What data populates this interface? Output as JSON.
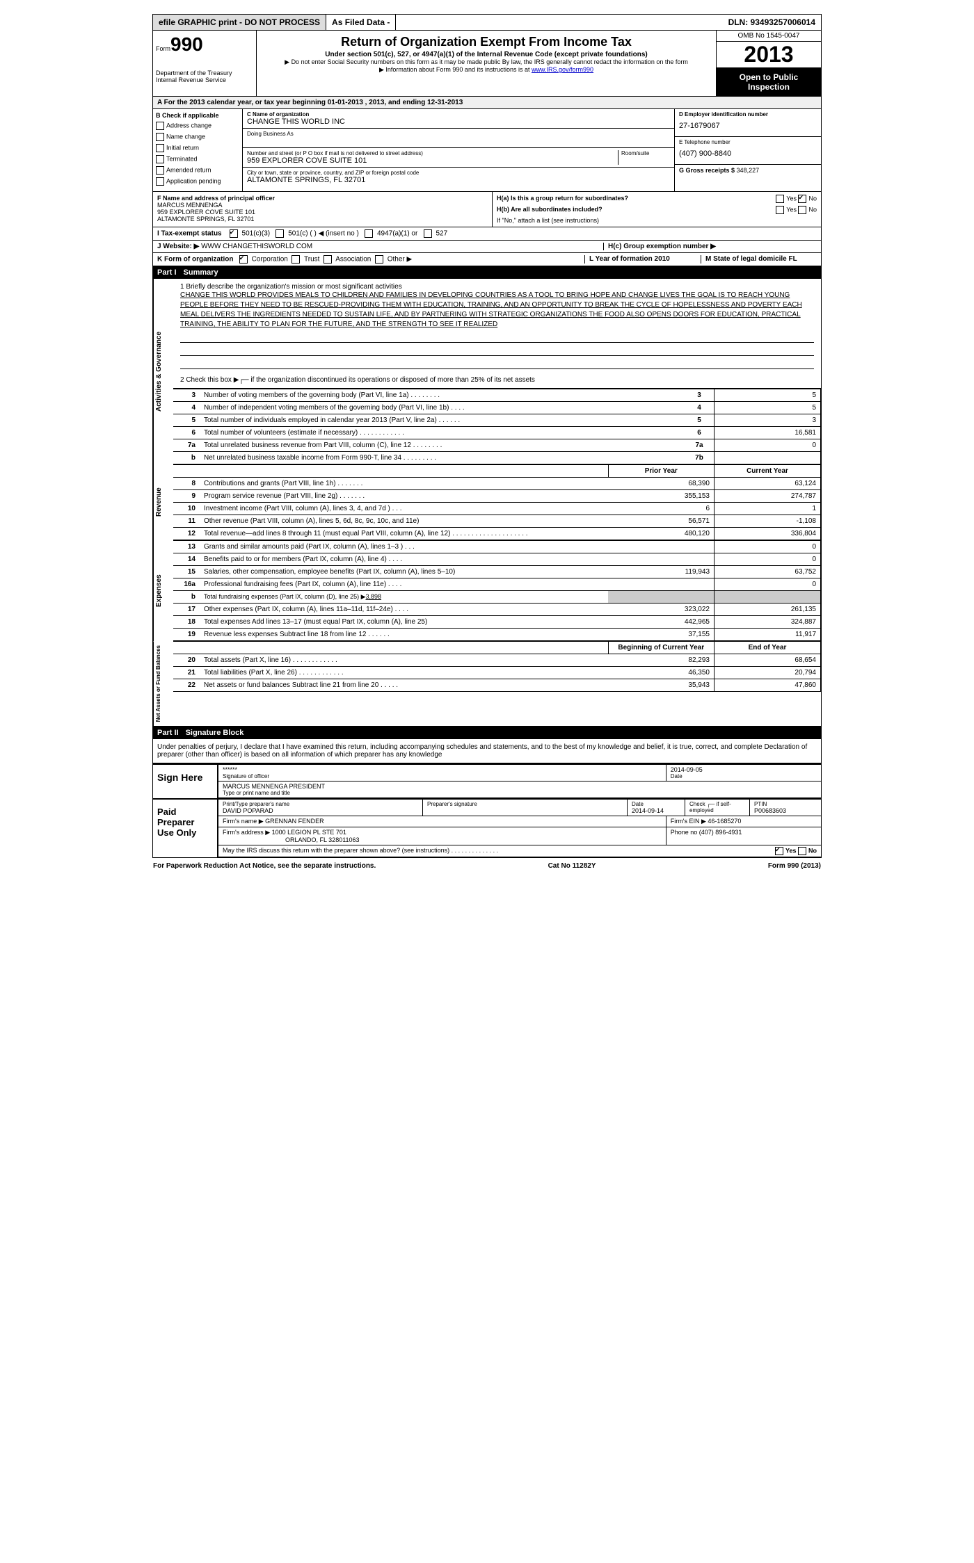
{
  "top": {
    "efile": "efile GRAPHIC print - DO NOT PROCESS",
    "asfiled": "As Filed Data -",
    "dln": "DLN: 93493257006014"
  },
  "header": {
    "form_word": "Form",
    "form_number": "990",
    "dept1": "Department of the Treasury",
    "dept2": "Internal Revenue Service",
    "title": "Return of Organization Exempt From Income Tax",
    "sub": "Under section 501(c), 527, or 4947(a)(1) of the Internal Revenue Code (except private foundations)",
    "note1": "▶ Do not enter Social Security numbers on this form as it may be made public  By law, the IRS generally cannot redact the information on the form",
    "note2_pre": "▶ Information about Form 990 and its instructions is at ",
    "note2_link": "www.IRS.gov/form990",
    "omb": "OMB No  1545-0047",
    "year": "2013",
    "inspect": "Open to Public Inspection"
  },
  "row_a": "A  For the 2013 calendar year, or tax year beginning 01-01-2013     , 2013, and ending 12-31-2013",
  "col_b": {
    "head": "B  Check if applicable",
    "items": [
      "Address change",
      "Name change",
      "Initial return",
      "Terminated",
      "Amended return",
      "Application pending"
    ]
  },
  "col_c": {
    "name_lbl": "C Name of organization",
    "name": "CHANGE THIS WORLD INC",
    "dba_lbl": "Doing Business As",
    "addr_lbl": "Number and street (or P O  box if mail is not delivered to street address)",
    "room_lbl": "Room/suite",
    "addr": "959 EXPLORER COVE SUITE 101",
    "city_lbl": "City or town, state or province, country, and ZIP or foreign postal code",
    "city": "ALTAMONTE SPRINGS, FL  32701"
  },
  "col_d": {
    "ein_lbl": "D Employer identification number",
    "ein": "27-1679067",
    "tel_lbl": "E Telephone number",
    "tel": "(407) 900-8840",
    "gross_lbl": "G Gross receipts $ ",
    "gross": "348,227"
  },
  "col_f": {
    "lbl": "F  Name and address of principal officer",
    "name": "MARCUS MENNENGA",
    "addr1": "959 EXPLORER COVE SUITE 101",
    "addr2": "ALTAMONTE SPRINGS, FL  32701"
  },
  "col_h": {
    "ha": "H(a)  Is this a group return for subordinates?",
    "hb": "H(b)  Are all subordinates included?",
    "hb_note": "If \"No,\" attach a list  (see instructions)",
    "hc": "H(c)   Group exemption number ▶"
  },
  "row_i": "I   Tax-exempt status",
  "row_i_opts": [
    "501(c)(3)",
    "501(c) (   ) ◀ (insert no )",
    "4947(a)(1) or",
    "527"
  ],
  "row_j_lbl": "J   Website: ▶",
  "row_j_val": " WWW CHANGETHISWORLD COM",
  "row_k": "K Form of organization",
  "row_k_opts": [
    "Corporation",
    "Trust",
    "Association",
    "Other ▶"
  ],
  "row_l": "L Year of formation  2010",
  "row_m": "M State of legal domicile  FL",
  "part1": {
    "num": "Part I",
    "title": "Summary"
  },
  "mission": {
    "lead": "1    Briefly describe the organization's mission or most significant activities",
    "text": "CHANGE THIS WORLD PROVIDES MEALS TO CHILDREN AND FAMILIES IN DEVELOPING COUNTRIES AS A TOOL TO BRING HOPE AND CHANGE LIVES  THE GOAL IS TO REACH YOUNG PEOPLE BEFORE THEY NEED TO BE RESCUED-PROVIDING THEM WITH EDUCATION, TRAINING, AND AN OPPORTUNITY TO BREAK THE CYCLE OF HOPELESSNESS AND POVERTY  EACH MEAL DELIVERS THE INGREDIENTS NEEDED TO SUSTAIN LIFE, AND BY PARTNERING WITH STRATEGIC ORGANIZATIONS THE FOOD ALSO OPENS DOORS FOR EDUCATION, PRACTICAL TRAINING, THE ABILITY TO PLAN FOR THE FUTURE, AND THE STRENGTH TO SEE IT REALIZED",
    "line2": "2    Check this box ▶┌─ if the organization discontinued its operations or disposed of more than 25% of its net assets"
  },
  "gov_rows": [
    {
      "n": "3",
      "d": "Number of voting members of the governing body (Part VI, line 1a)   .    .    .    .    .    .    .    .",
      "r": "3",
      "v": "5"
    },
    {
      "n": "4",
      "d": "Number of independent voting members of the governing body (Part VI, line 1b)    .    .    .    .",
      "r": "4",
      "v": "5"
    },
    {
      "n": "5",
      "d": "Total number of individuals employed in calendar year 2013 (Part V, line 2a)    .    .    .    .    .    .",
      "r": "5",
      "v": "3"
    },
    {
      "n": "6",
      "d": "Total number of volunteers (estimate if necessary)    .    .    .    .    .    .    .    .    .    .    .    .",
      "r": "6",
      "v": "16,581"
    },
    {
      "n": "7a",
      "d": "Total unrelated business revenue from Part VIII, column (C), line 12    .    .    .    .    .    .    .    .",
      "r": "7a",
      "v": "0"
    },
    {
      "n": "b",
      "d": "Net unrelated business taxable income from Form 990-T, line 34    .    .    .    .    .    .    .    .    .",
      "r": "7b",
      "v": ""
    }
  ],
  "fin_head": {
    "py": "Prior Year",
    "cy": "Current Year"
  },
  "rev_rows": [
    {
      "n": "8",
      "d": "Contributions and grants (Part VIII, line 1h)    .    .    .    .    .    .    .",
      "py": "68,390",
      "cy": "63,124"
    },
    {
      "n": "9",
      "d": "Program service revenue (Part VIII, line 2g)    .    .    .    .    .    .    .",
      "py": "355,153",
      "cy": "274,787"
    },
    {
      "n": "10",
      "d": "Investment income (Part VIII, column (A), lines 3, 4, and 7d )    .    .    .",
      "py": "6",
      "cy": "1"
    },
    {
      "n": "11",
      "d": "Other revenue (Part VIII, column (A), lines 5, 6d, 8c, 9c, 10c, and 11e)",
      "py": "56,571",
      "cy": "-1,108"
    },
    {
      "n": "12",
      "d": "Total revenue—add lines 8 through 11 (must equal Part VIII, column (A), line 12)  .    .    .    .    .    .    .    .    .    .    .    .    .    .    .    .    .    .    .    .",
      "py": "480,120",
      "cy": "336,804"
    }
  ],
  "exp_rows": [
    {
      "n": "13",
      "d": "Grants and similar amounts paid (Part IX, column (A), lines 1–3 )    .    .    .",
      "py": "",
      "cy": "0"
    },
    {
      "n": "14",
      "d": "Benefits paid to or for members (Part IX, column (A), line 4)    .    .    .    .",
      "py": "",
      "cy": "0"
    },
    {
      "n": "15",
      "d": "Salaries, other compensation, employee benefits (Part IX, column (A), lines 5–10)",
      "py": "119,943",
      "cy": "63,752"
    },
    {
      "n": "16a",
      "d": "Professional fundraising fees (Part IX, column (A), line 11e)    .    .    .    .",
      "py": "",
      "cy": "0"
    },
    {
      "n": "b",
      "d": "Total fundraising expenses (Part IX, column (D), line 25) ▶",
      "fr": "3,898",
      "shade": true
    },
    {
      "n": "17",
      "d": "Other expenses (Part IX, column (A), lines 11a–11d, 11f–24e)    .    .    .    .",
      "py": "323,022",
      "cy": "261,135"
    },
    {
      "n": "18",
      "d": "Total expenses  Add lines 13–17 (must equal Part IX, column (A), line 25)",
      "py": "442,965",
      "cy": "324,887"
    },
    {
      "n": "19",
      "d": "Revenue less expenses  Subtract line 18 from line 12    .    .    .    .    .    .",
      "py": "37,155",
      "cy": "11,917"
    }
  ],
  "na_head": {
    "py": "Beginning of Current Year",
    "cy": "End of Year"
  },
  "na_rows": [
    {
      "n": "20",
      "d": "Total assets (Part X, line 16)    .    .    .    .    .    .    .    .    .    .    .    .",
      "py": "82,293",
      "cy": "68,654"
    },
    {
      "n": "21",
      "d": "Total liabilities (Part X, line 26)    .    .    .    .    .    .    .    .    .    .    .    .",
      "py": "46,350",
      "cy": "20,794"
    },
    {
      "n": "22",
      "d": "Net assets or fund balances  Subtract line 21 from line 20    .    .    .    .    .",
      "py": "35,943",
      "cy": "47,860"
    }
  ],
  "side_labels": {
    "ag": "Activities & Governance",
    "rev": "Revenue",
    "exp": "Expenses",
    "na": "Net Assets or Fund Balances"
  },
  "part2": {
    "num": "Part II",
    "title": "Signature Block"
  },
  "penalty": "Under penalties of perjury, I declare that I have examined this return, including accompanying schedules and statements, and to the best of my knowledge and belief, it is true, correct, and complete  Declaration of preparer (other than officer) is based on all information of which preparer has any knowledge",
  "sign": {
    "here": "Sign Here",
    "stars": "******",
    "sig_lbl": "Signature of officer",
    "date": "2014-09-05",
    "date_lbl": "Date",
    "name": "MARCUS MENNENGA PRESIDENT",
    "name_lbl": "Type or print name and title"
  },
  "paid": {
    "label": "Paid Preparer Use Only",
    "prep_name_lbl": "Print/Type preparer's name",
    "prep_name": "DAVID POPARAD",
    "prep_sig_lbl": "Preparer's signature",
    "prep_date_lbl": "Date",
    "prep_date": "2014-09-14",
    "check_lbl": "Check ┌─ if self-employed",
    "ptin_lbl": "PTIN",
    "ptin": "P00683603",
    "firm_name_lbl": "Firm's name     ▶ ",
    "firm_name": "GRENNAN FENDER",
    "firm_ein_lbl": "Firm's EIN ▶ ",
    "firm_ein": "46-1685270",
    "firm_addr_lbl": "Firm's address ▶ ",
    "firm_addr1": "1000 LEGION PL STE 701",
    "firm_addr2": "ORLANDO, FL  328011063",
    "phone_lbl": "Phone no  ",
    "phone": "(407) 896-4931",
    "discuss": "May the IRS discuss this return with the preparer shown above? (see instructions)    .    .    .    .    .    .    .    .    .    .    .    .    .    ."
  },
  "footer": {
    "left": "For Paperwork Reduction Act Notice, see the separate instructions.",
    "mid": "Cat No  11282Y",
    "right": "Form 990 (2013)"
  },
  "yn": {
    "yes": "Yes",
    "no": "No"
  }
}
